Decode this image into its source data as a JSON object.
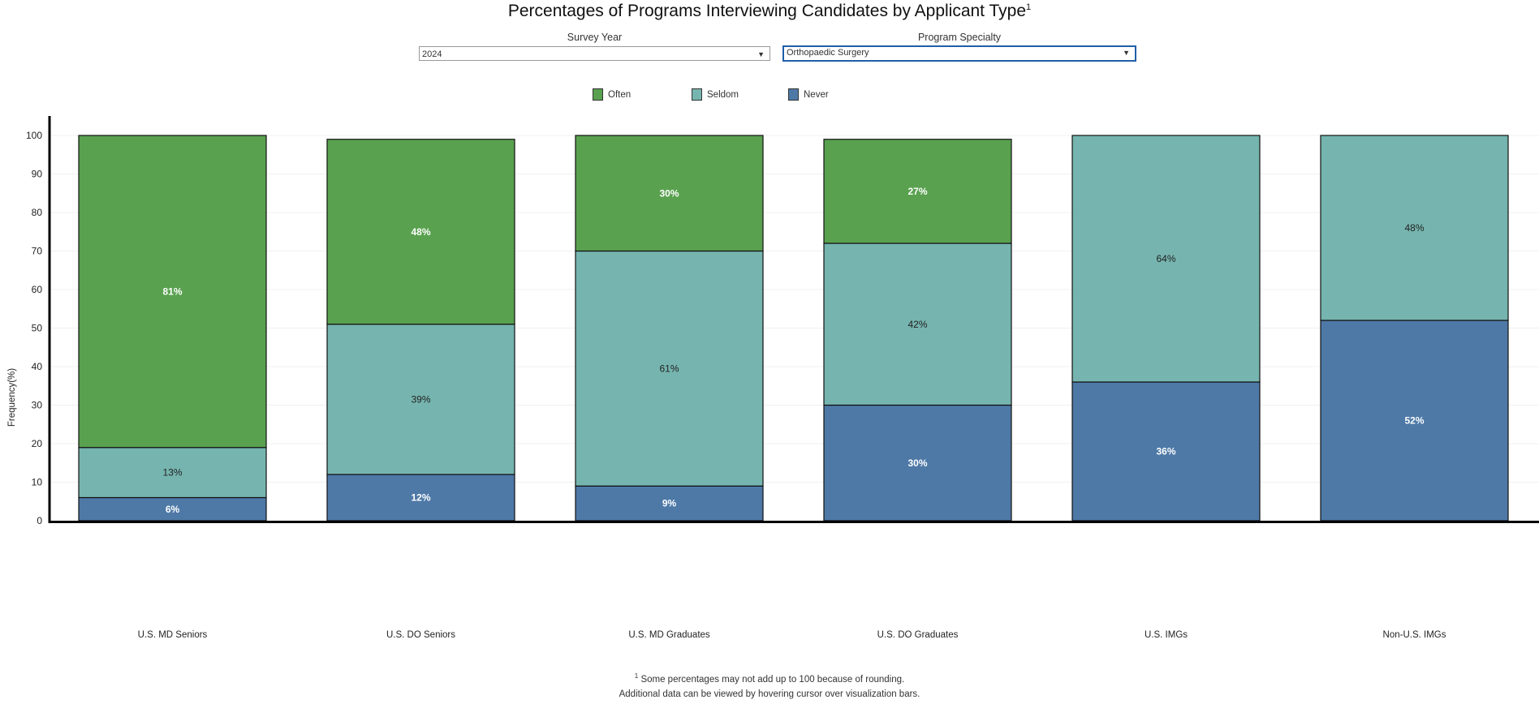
{
  "title": "Percentages of Programs Interviewing Candidates by Applicant Type",
  "title_sup": "1",
  "filters": {
    "survey_year": {
      "label": "Survey Year",
      "value": "2024"
    },
    "program_specialty": {
      "label": "Program Specialty",
      "value": "Orthopaedic Surgery"
    }
  },
  "footnote": {
    "sup": "1",
    "line1": "Some percentages may not add up to 100 because of rounding.",
    "line2": "Additional data can be viewed by hovering cursor over visualization bars."
  },
  "chart_data": {
    "type": "bar",
    "stacked": true,
    "title": "Percentages of Programs Interviewing Candidates by Applicant Type",
    "xlabel": "",
    "ylabel": "Frequency(%)",
    "ylim": [
      0,
      100
    ],
    "yticks": [
      0,
      10,
      20,
      30,
      40,
      50,
      60,
      70,
      80,
      90,
      100
    ],
    "grid": true,
    "legend_position": "top",
    "categories": [
      "U.S. MD Seniors",
      "U.S. DO Seniors",
      "U.S. MD Graduates",
      "U.S. DO Graduates",
      "U.S. IMGs",
      "Non-U.S. IMGs"
    ],
    "series": [
      {
        "name": "Never",
        "color": "#4e79a7",
        "values": [
          6,
          12,
          9,
          30,
          36,
          52
        ]
      },
      {
        "name": "Seldom",
        "color": "#76b5af",
        "values": [
          13,
          39,
          61,
          42,
          64,
          48
        ]
      },
      {
        "name": "Often",
        "color": "#59a14f",
        "values": [
          81,
          48,
          30,
          27,
          null,
          null
        ]
      }
    ],
    "legend_order": [
      "Often",
      "Seldom",
      "Never"
    ]
  }
}
